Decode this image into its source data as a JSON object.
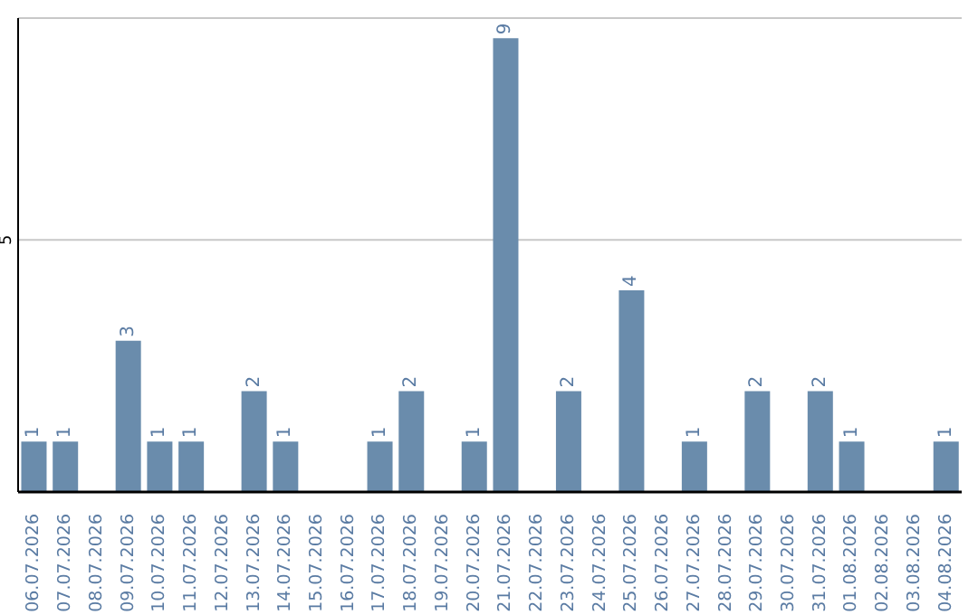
{
  "chart_data": {
    "type": "bar",
    "categories": [
      "06.07.2026",
      "07.07.2026",
      "08.07.2026",
      "09.07.2026",
      "10.07.2026",
      "11.07.2026",
      "12.07.2026",
      "13.07.2026",
      "14.07.2026",
      "15.07.2026",
      "16.07.2026",
      "17.07.2026",
      "18.07.2026",
      "19.07.2026",
      "20.07.2026",
      "21.07.2026",
      "22.07.2026",
      "23.07.2026",
      "24.07.2026",
      "25.07.2026",
      "26.07.2026",
      "27.07.2026",
      "28.07.2026",
      "29.07.2026",
      "30.07.2026",
      "31.07.2026",
      "01.08.2026",
      "02.08.2026",
      "03.08.2026",
      "04.08.2026"
    ],
    "values": [
      1,
      1,
      0,
      3,
      1,
      1,
      0,
      2,
      1,
      0,
      0,
      1,
      2,
      0,
      1,
      9,
      0,
      2,
      0,
      4,
      0,
      1,
      0,
      2,
      0,
      2,
      1,
      0,
      0,
      1
    ],
    "value_labels": [
      "1",
      "1",
      null,
      "3",
      "1",
      "1",
      null,
      "2",
      "1",
      null,
      null,
      "1",
      "2",
      null,
      "1",
      "9",
      null,
      "2",
      null,
      "4",
      null,
      "1",
      null,
      "2",
      null,
      "2",
      "1",
      null,
      null,
      "1"
    ],
    "color": "#6a8cac",
    "ylim": [
      0,
      9.4
    ],
    "yticks": [
      5
    ],
    "grid": "y"
  }
}
